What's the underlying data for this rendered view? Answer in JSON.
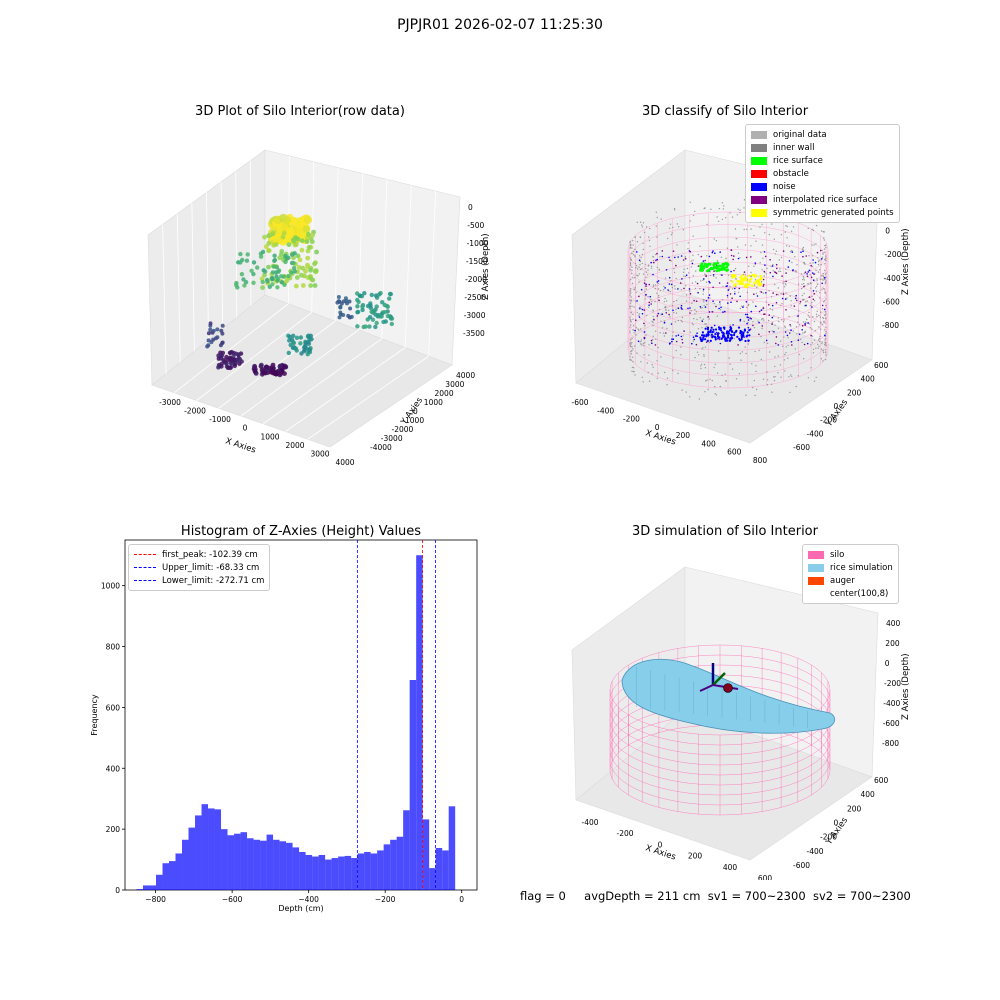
{
  "suptitle": "PJPJR01 2026-02-07 11:25:30",
  "footer": {
    "flag": "flag = 0",
    "avg_depth": "avgDepth = 211 cm",
    "sv1": "sv1 = 700~2300",
    "sv2": "sv2 = 700~2300"
  },
  "chart_data": [
    {
      "type": "scatter",
      "title": "3D Plot of Silo Interior(row data)",
      "xlabel": "X Axies",
      "ylabel": "Y Axies",
      "zlabel": "Z Axies (Depth)",
      "x_ticks": [
        "-3000",
        "-2000",
        "-1000",
        "0",
        "1000",
        "2000",
        "3000",
        "4000"
      ],
      "y_ticks": [
        "-4000",
        "-3000",
        "-2000",
        "-1000",
        "0",
        "1000",
        "2000",
        "3000",
        "4000"
      ],
      "z_ticks": [
        "0",
        "-500",
        "-1000",
        "-1500",
        "-2000",
        "-2500",
        "-3000",
        "-3500"
      ],
      "xlim": [
        -3500,
        4500
      ],
      "ylim": [
        -4000,
        4000
      ],
      "zlim": [
        -3800,
        200
      ],
      "colormap": "viridis"
    },
    {
      "type": "scatter",
      "title": "3D classify of Silo Interior",
      "xlabel": "X Axies",
      "ylabel": "Y Axies",
      "zlabel": "Z Axies (Depth)",
      "x_ticks": [
        "-600",
        "-400",
        "-200",
        "0",
        "200",
        "400",
        "600",
        "800"
      ],
      "y_ticks": [
        "-600",
        "-400",
        "-200",
        "0",
        "200",
        "400",
        "600"
      ],
      "z_ticks": [
        "200",
        "0",
        "-200",
        "-400",
        "-600",
        "-800"
      ],
      "legend": [
        {
          "label": "original data",
          "color": "#b0b0b0"
        },
        {
          "label": "inner wall",
          "color": "#808080"
        },
        {
          "label": "rice surface",
          "color": "#00ff00"
        },
        {
          "label": "obstacle",
          "color": "#ff0000"
        },
        {
          "label": "noise",
          "color": "#0000ff"
        },
        {
          "label": "interpolated rice surface",
          "color": "#800080"
        },
        {
          "label": "symmetric generated points",
          "color": "#ffff00"
        }
      ],
      "legend_loc": "upper-right"
    },
    {
      "type": "bar",
      "title": "Histogram of Z-Axies (Height) Values",
      "xlabel": "Depth (cm)",
      "ylabel": "Frequency",
      "xlim": [
        -880,
        40
      ],
      "ylim": [
        0,
        1150
      ],
      "x_ticks": [
        -800,
        -600,
        -400,
        -200,
        0
      ],
      "y_ticks": [
        0,
        200,
        400,
        600,
        800,
        1000
      ],
      "bin_start": -850,
      "bin_width": 17,
      "values": [
        3,
        15,
        15,
        50,
        88,
        95,
        120,
        165,
        205,
        245,
        282,
        268,
        265,
        200,
        180,
        185,
        190,
        170,
        165,
        162,
        182,
        165,
        160,
        155,
        140,
        125,
        115,
        110,
        115,
        100,
        105,
        110,
        112,
        105,
        120,
        125,
        120,
        130,
        150,
        165,
        175,
        262,
        690,
        1100,
        232,
        72,
        138,
        130,
        275
      ],
      "bar_color": "#0000ff",
      "vlines": [
        {
          "label": "first_peak: -102.39 cm",
          "x": -102.39,
          "color": "#ff0000"
        },
        {
          "label": "Upper_limit: -68.33 cm",
          "x": -68.33,
          "color": "#0000ff"
        },
        {
          "label": "Lower_limit: -272.71 cm",
          "x": -272.71,
          "color": "#0000ff"
        }
      ],
      "legend_loc": "upper-left"
    },
    {
      "type": "area",
      "title": "3D simulation of Silo Interior",
      "xlabel": "X Axies",
      "ylabel": "Y Axies",
      "zlabel": "Z Axies (Depth)",
      "x_ticks": [
        "-400",
        "-200",
        "0",
        "200",
        "400",
        "600"
      ],
      "y_ticks": [
        "-600",
        "-400",
        "-200",
        "0",
        "200",
        "400",
        "600"
      ],
      "z_ticks": [
        "400",
        "200",
        "0",
        "-200",
        "-400",
        "-600",
        "-800"
      ],
      "legend": [
        {
          "label": "silo",
          "color": "#ff69b4"
        },
        {
          "label": "rice simulation",
          "color": "#87ceeb"
        },
        {
          "label": "auger",
          "color": "#ff4500"
        },
        {
          "label": "center(100,8)",
          "color": ""
        }
      ],
      "legend_loc": "upper-right"
    }
  ]
}
